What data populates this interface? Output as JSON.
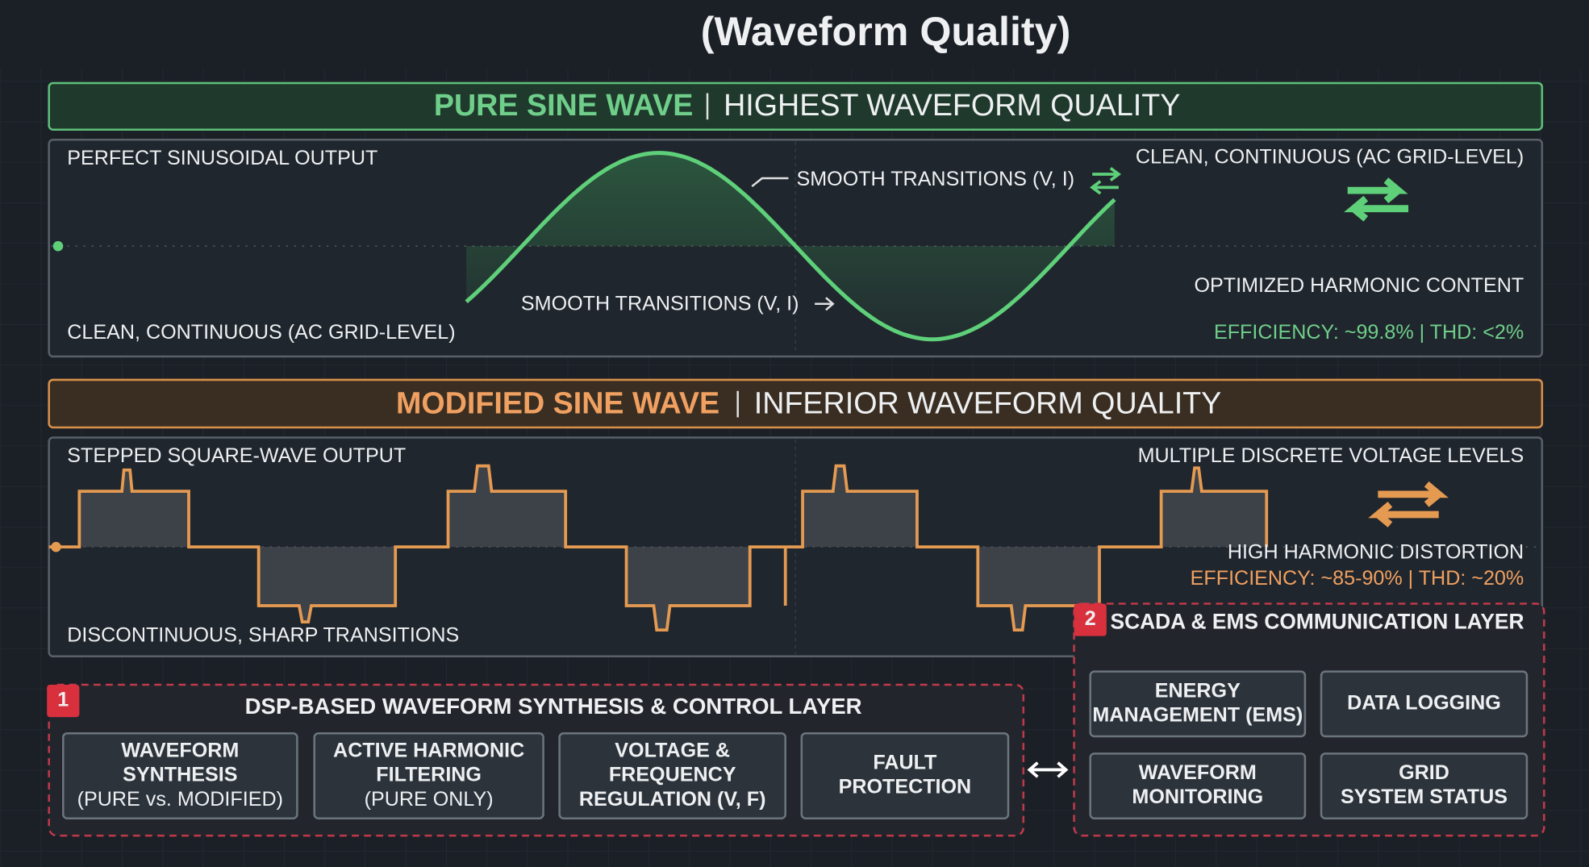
{
  "title": "(Waveform Quality)",
  "pure": {
    "header_bold": "PURE SINE WAVE",
    "header_rest": "HIGHEST WAVEFORM QUALITY",
    "top_left": "PERFECT SINUSOIDAL OUTPUT",
    "transition_top": "SMOOTH TRANSITIONS (V, I)",
    "top_right": "CLEAN, CONTINUOUS (AC GRID-LEVEL)",
    "transition_bottom": "SMOOTH TRANSITIONS (V, I)",
    "harmonics": "OPTIMIZED HARMONIC CONTENT",
    "bottom_left": "CLEAN, CONTINUOUS (AC GRID-LEVEL)",
    "efficiency": "EFFICIENCY: ~99.8% | THD: <2%"
  },
  "modified": {
    "header_bold": "MODIFIED SINE WAVE",
    "header_rest": "INFERIOR WAVEFORM QUALITY",
    "top_left": "STEPPED SQUARE-WAVE OUTPUT",
    "top_right": "MULTIPLE DISCRETE VOLTAGE LEVELS",
    "harmonics": "HIGH HARMONIC DISTORTION",
    "efficiency": "EFFICIENCY: ~85-90% | THD: ~20%",
    "bottom_left": "DISCONTINUOUS, SHARP TRANSITIONS"
  },
  "layer1": {
    "badge": "1",
    "title": "DSP-BASED WAVEFORM SYNTHESIS & CONTROL LAYER",
    "boxes": [
      {
        "lines": [
          "WAVEFORM",
          "SYNTHESIS",
          "(PURE vs. MODIFIED)"
        ]
      },
      {
        "lines": [
          "ACTIVE HARMONIC",
          "FILTERING",
          "(PURE ONLY)"
        ]
      },
      {
        "lines": [
          "VOLTAGE &",
          "FREQUENCY",
          "REGULATION (V, F)"
        ]
      },
      {
        "lines": [
          "FAULT",
          "PROTECTION"
        ]
      }
    ]
  },
  "layer2": {
    "badge": "2",
    "title": "SCADA & EMS COMMUNICATION LAYER",
    "boxes": [
      {
        "lines": [
          "ENERGY",
          "MANAGEMENT (EMS)"
        ]
      },
      {
        "lines": [
          "DATA LOGGING"
        ]
      },
      {
        "lines": [
          "WAVEFORM",
          "MONITORING"
        ]
      },
      {
        "lines": [
          "GRID",
          "SYSTEM STATUS"
        ]
      }
    ]
  }
}
